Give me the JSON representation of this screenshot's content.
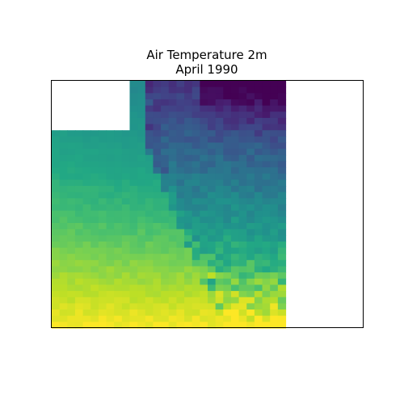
{
  "chart_data": {
    "type": "heatmap",
    "title": "Air Temperature 2m",
    "subtitle": "April 1990",
    "xlabel": "",
    "ylabel": "",
    "colormap": "viridis",
    "axis_ticks": "none",
    "grid": false,
    "legend": "none",
    "grid_cols": 40,
    "grid_rows": 40,
    "data_extent_cols": [
      0,
      30
    ],
    "masked_block": {
      "cols": [
        0,
        10
      ],
      "rows": [
        0,
        8
      ]
    },
    "value_range": [
      0,
      1
    ],
    "description_values": [
      "cold (dark purple) in the northeast corner",
      "cool blue-teal in the north",
      "green-teal over the ocean to the west",
      "warm yellow in the south",
      "mottled mountainous coastline running north-south"
    ]
  },
  "colors": {
    "background": "#ffffff",
    "frame": "#000000",
    "viridis_low": "#440154",
    "viridis_high": "#fde725"
  }
}
